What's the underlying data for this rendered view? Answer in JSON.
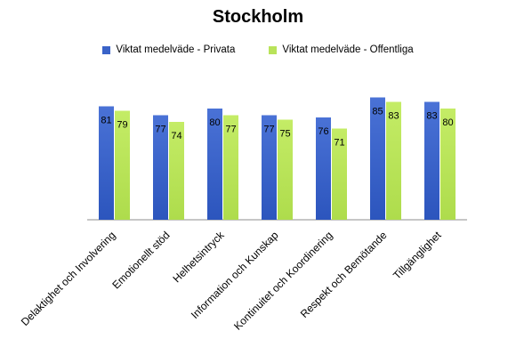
{
  "chart_data": {
    "type": "bar",
    "title": "Stockholm",
    "categories": [
      "Delaktighet och Involvering",
      "Emotionellt stöd",
      "Helhetsintryck",
      "Information och Kunskap",
      "Kontinuitet och Koordinering",
      "Respekt och Bemötande",
      "Tillgänglighet"
    ],
    "series": [
      {
        "name": "Viktat medelväde - Privata",
        "color": "#3a63c8",
        "values": [
          81,
          77,
          80,
          77,
          76,
          85,
          83
        ]
      },
      {
        "name": "Viktat medelväde - Offentliga",
        "color": "#b9e35a",
        "values": [
          79,
          74,
          77,
          75,
          71,
          83,
          80
        ]
      }
    ],
    "ylim": [
      30,
      90
    ],
    "grid": false,
    "legend": "top"
  }
}
